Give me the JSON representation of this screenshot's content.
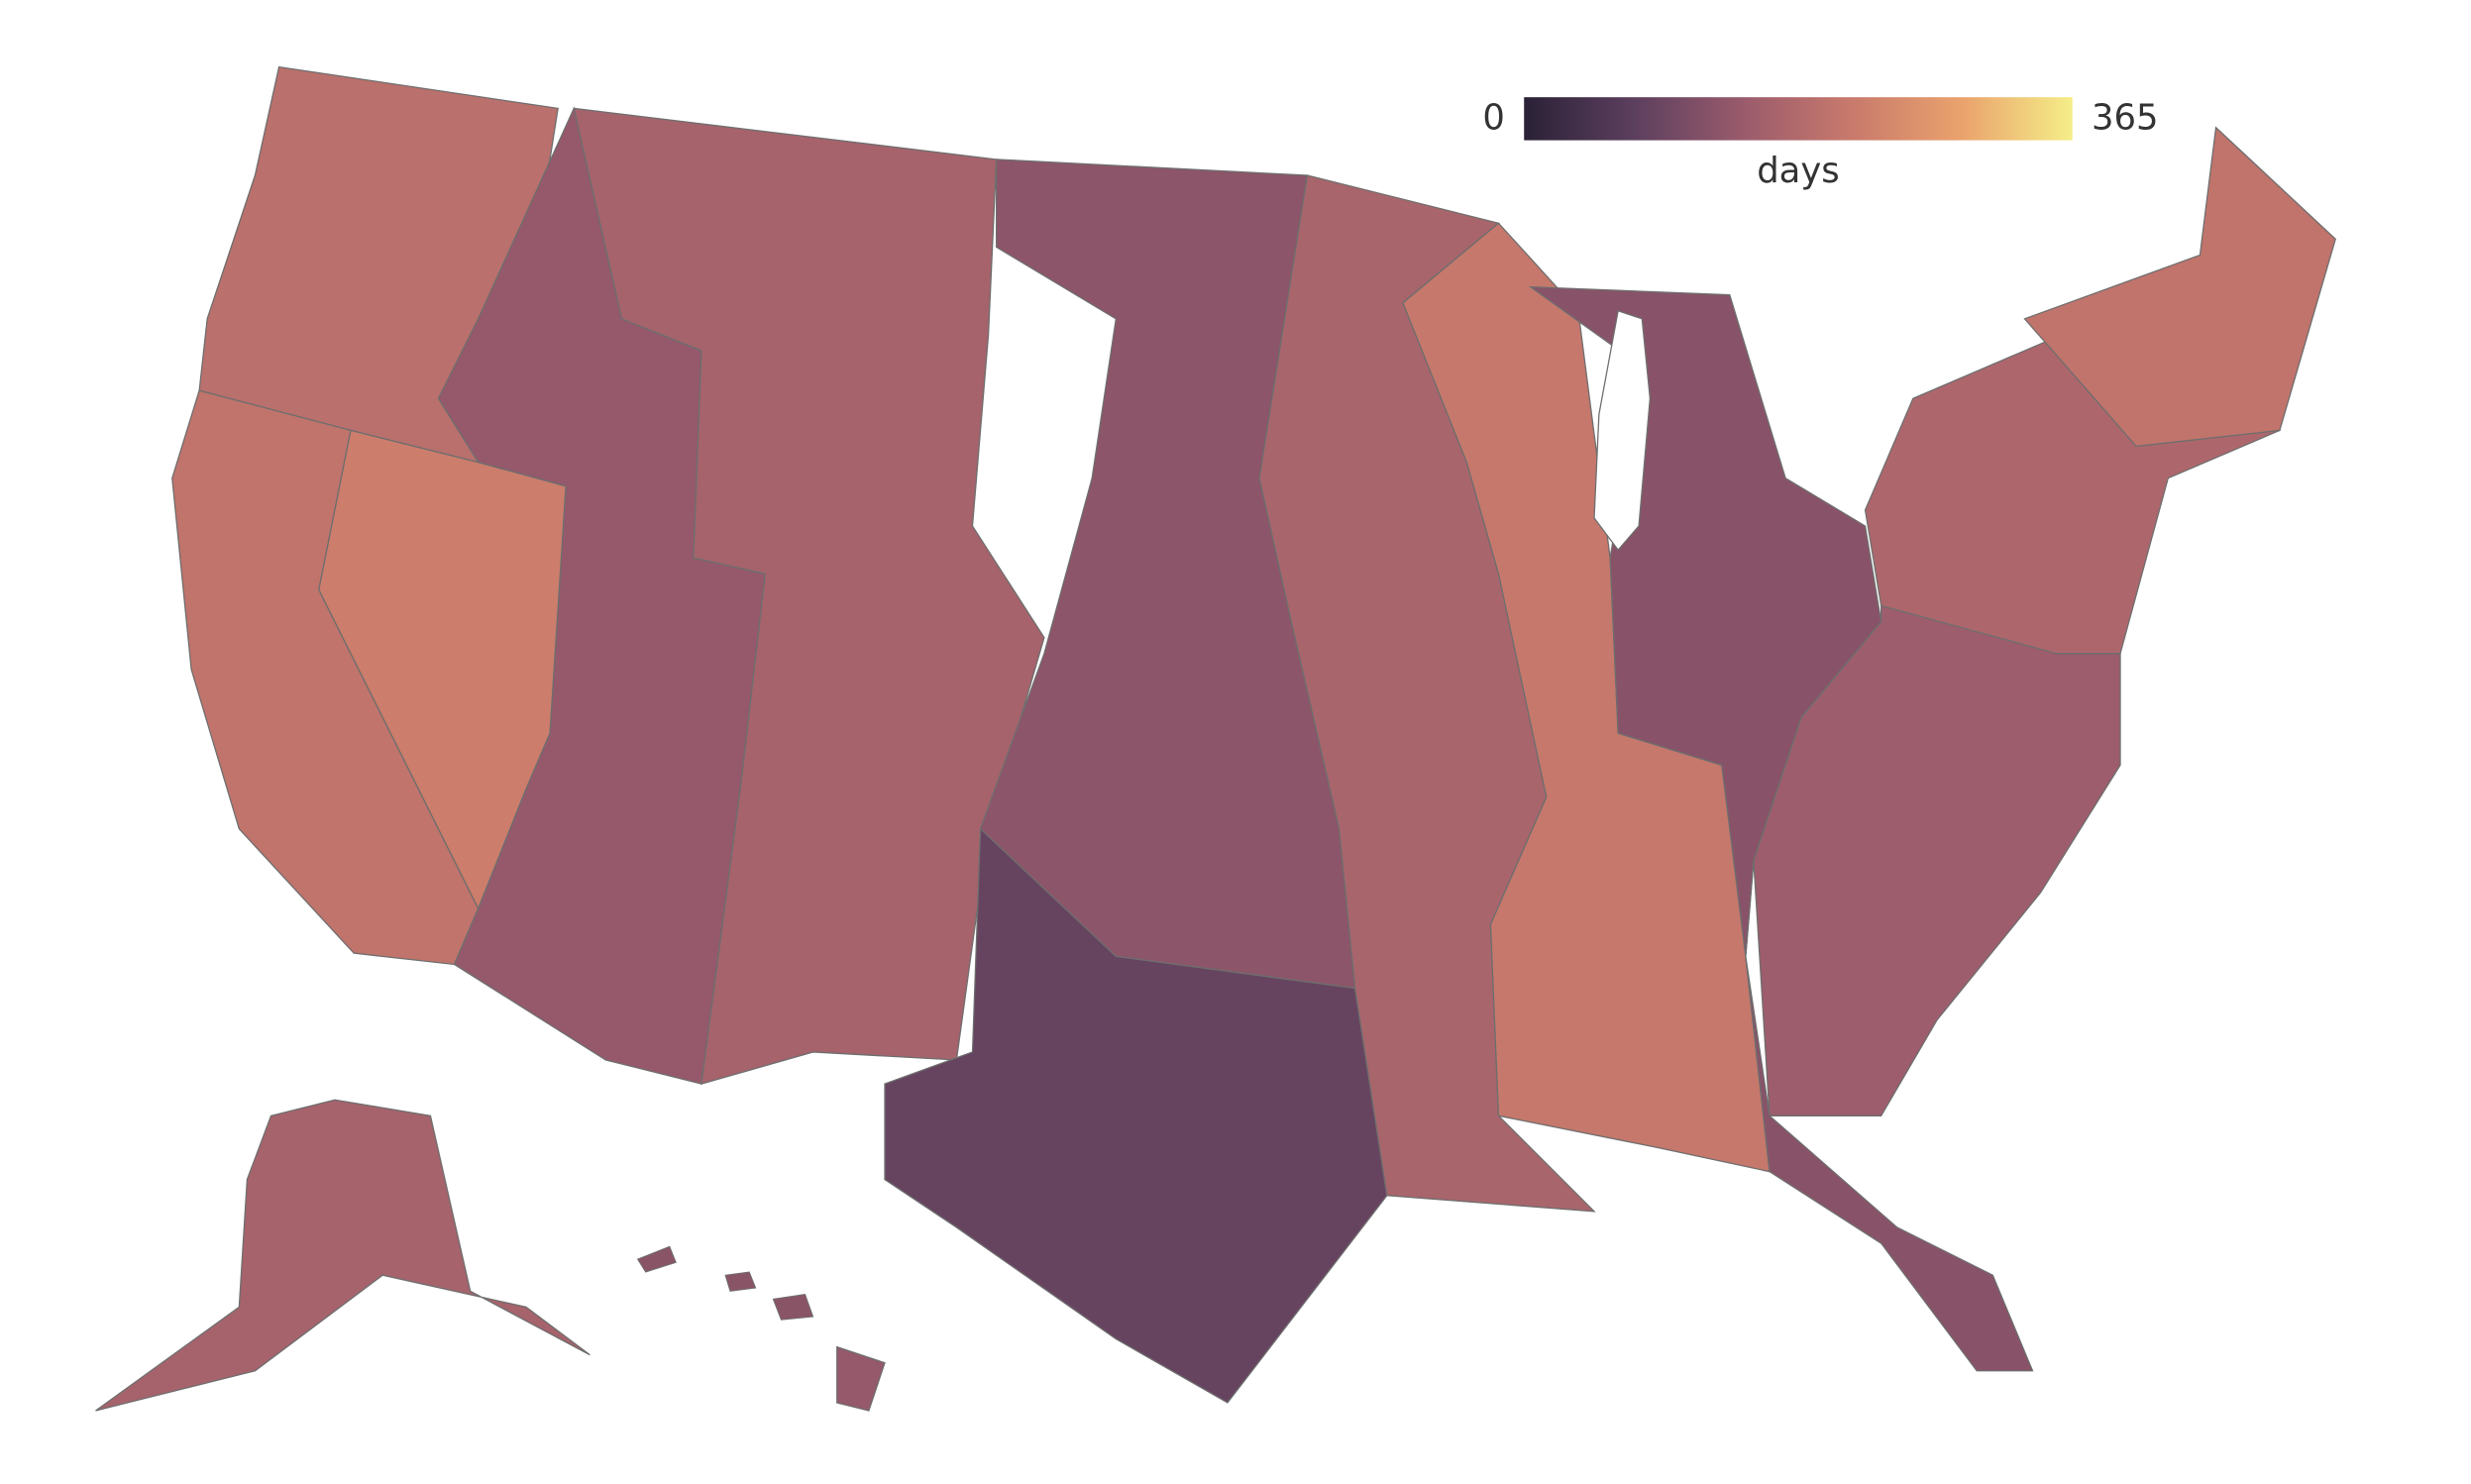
{
  "map": {
    "region_values": [
      195,
      205,
      225,
      140,
      165,
      130,
      85,
      170,
      215,
      125,
      150,
      175,
      205,
      165,
      140
    ]
  },
  "colorbar": {
    "title": "days",
    "range": [
      0,
      365
    ],
    "ticks": [
      0,
      365
    ],
    "colorscale": [
      "#2a2136",
      "#5c3f5e",
      "#9a5b6c",
      "#c97a6c",
      "#eaa36d",
      "#f5ee88"
    ]
  }
}
